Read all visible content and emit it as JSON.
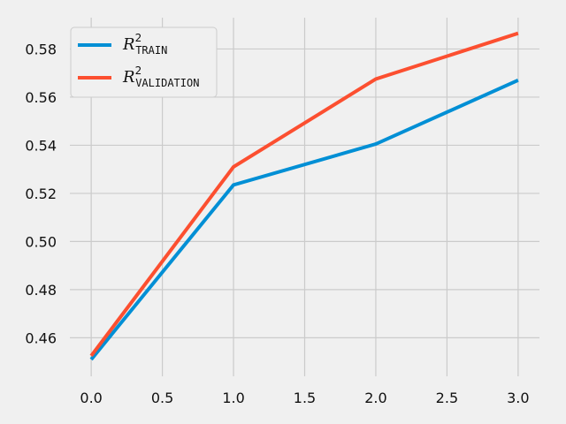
{
  "chart_data": {
    "type": "line",
    "x": [
      0,
      1,
      2,
      3
    ],
    "series": [
      {
        "name": "R²TRAIN",
        "symbol": "R",
        "superscript": "2",
        "subscript": "TRAIN",
        "color": "#008fd5",
        "values": [
          0.451,
          0.5235,
          0.5405,
          0.567
        ]
      },
      {
        "name": "R²VALIDATION",
        "symbol": "R",
        "superscript": "2",
        "subscript": "VALIDATION",
        "color": "#fc4f30",
        "values": [
          0.4525,
          0.531,
          0.5675,
          0.5865
        ]
      }
    ],
    "title": "",
    "xlabel": "",
    "ylabel": "",
    "xlim": [
      -0.15,
      3.15
    ],
    "ylim": [
      0.444,
      0.593
    ],
    "xticks": [
      0.0,
      0.5,
      1.0,
      1.5,
      2.0,
      2.5,
      3.0
    ],
    "xtick_labels": [
      "0.0",
      "0.5",
      "1.0",
      "1.5",
      "2.0",
      "2.5",
      "3.0"
    ],
    "yticks": [
      0.46,
      0.48,
      0.5,
      0.52,
      0.54,
      0.56,
      0.58
    ],
    "ytick_labels": [
      "0.46",
      "0.48",
      "0.50",
      "0.52",
      "0.54",
      "0.56",
      "0.58"
    ],
    "grid": true,
    "legend_position": "top-left"
  }
}
